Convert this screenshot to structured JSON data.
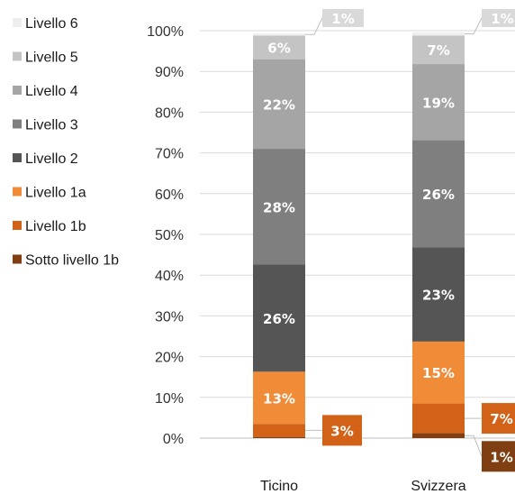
{
  "chart_data": {
    "type": "bar",
    "stacked": true,
    "title": "",
    "xlabel": "",
    "ylabel": "",
    "ylim": [
      0,
      100
    ],
    "y_ticks": [
      "0%",
      "10%",
      "20%",
      "30%",
      "40%",
      "50%",
      "60%",
      "70%",
      "80%",
      "90%",
      "100%"
    ],
    "grid": true,
    "legend_position": "left",
    "categories": [
      "Ticino",
      "Svizzera"
    ],
    "series": [
      {
        "name": "Sotto livello 1b",
        "color": "#7f3f12",
        "values": [
          0.3,
          1.2
        ],
        "labels": [
          "",
          "1%"
        ]
      },
      {
        "name": "Livello 1b",
        "color": "#d26217",
        "values": [
          3.2,
          7.3
        ],
        "labels": [
          "3%",
          "7%"
        ]
      },
      {
        "name": "Livello 1a",
        "color": "#f08b38",
        "values": [
          12.8,
          15.2
        ],
        "labels": [
          "13%",
          "15%"
        ]
      },
      {
        "name": "Livello 2",
        "color": "#555555",
        "values": [
          26.3,
          23.1
        ],
        "labels": [
          "26%",
          "23%"
        ]
      },
      {
        "name": "Livello 3",
        "color": "#7f7f7f",
        "values": [
          28.4,
          26.3
        ],
        "labels": [
          "28%",
          "26%"
        ]
      },
      {
        "name": "Livello 4",
        "color": "#a5a5a5",
        "values": [
          22.0,
          18.7
        ],
        "labels": [
          "22%",
          "19%"
        ]
      },
      {
        "name": "Livello 5",
        "color": "#c4c4c4",
        "values": [
          5.8,
          7.0
        ],
        "labels": [
          "6%",
          "7%"
        ]
      },
      {
        "name": "Livello 6",
        "color": "#eeeeee",
        "values": [
          0.5,
          0.8
        ],
        "labels": [
          "1%",
          "1%"
        ]
      }
    ]
  }
}
